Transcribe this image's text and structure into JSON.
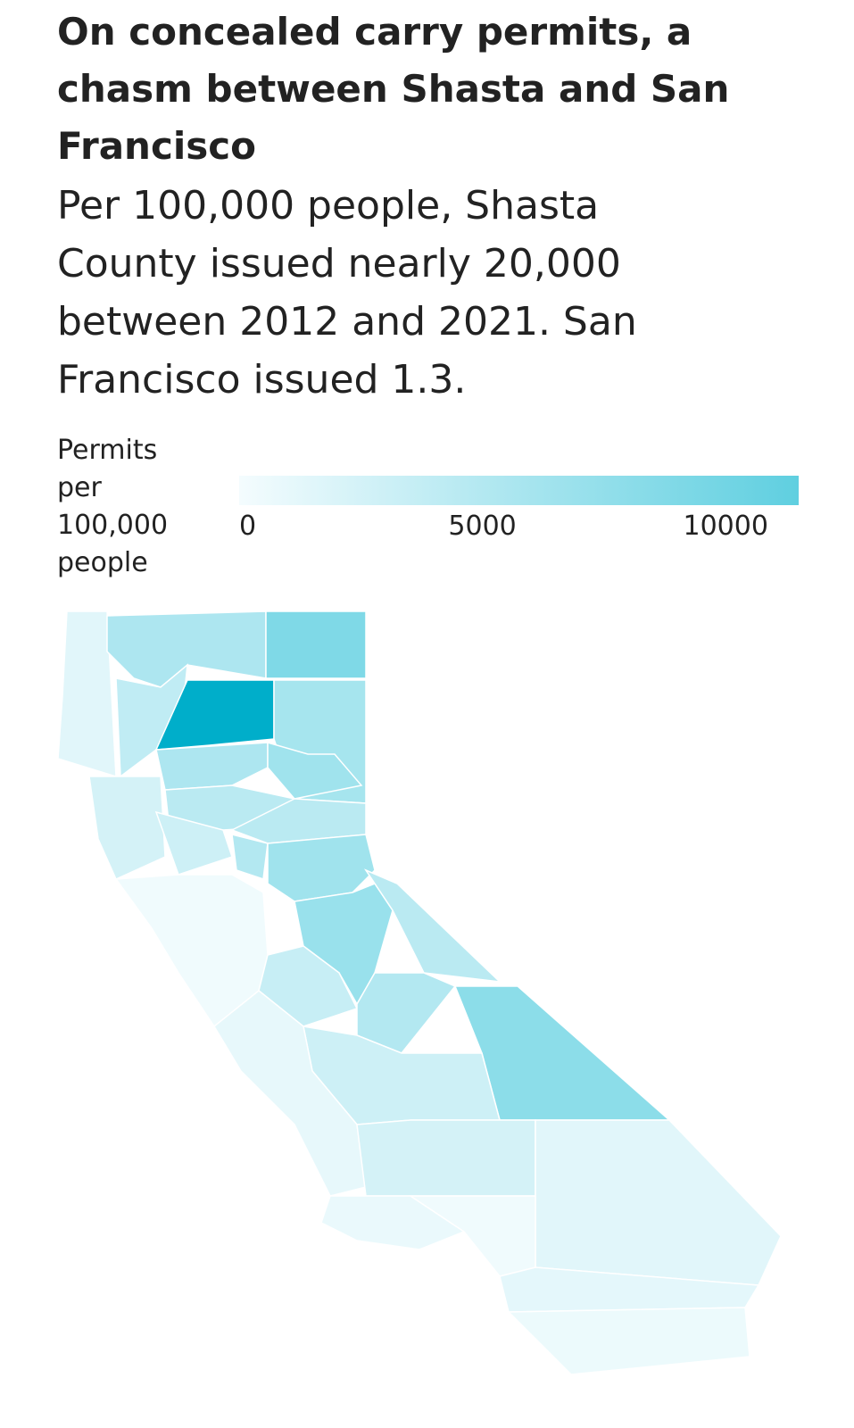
{
  "chart_data": {
    "type": "choropleth",
    "title": "On concealed carry permits, a chasm between Shasta and San Francisco",
    "subtitle": "Per 100,000 people, Shasta County issued nearly 20,000 between 2012 and 2021. San Francisco issued 1.3.",
    "legend_title": "Permits per 100,000 people",
    "legend_lim": [
      0,
      11500
    ],
    "legend_ticks": [
      0,
      5000,
      10000
    ],
    "colors": [
      "#f4fcfe",
      "#5fcfe0"
    ],
    "values": [
      1500,
      5500,
      9000,
      4000,
      20000,
      6000,
      5500,
      6500,
      2500,
      4500,
      3000,
      4500,
      5000,
      6500,
      300,
      7000,
      4500,
      3500,
      5000,
      8000,
      3000,
      1000,
      2500,
      800,
      1500,
      300,
      1200,
      600
    ]
  }
}
